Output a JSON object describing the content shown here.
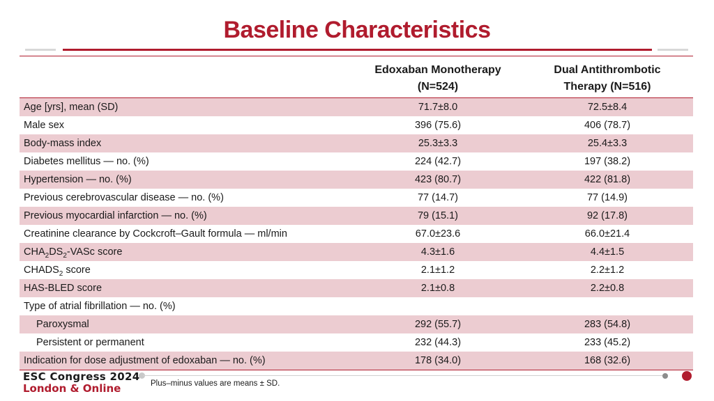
{
  "title": "Baseline Characteristics",
  "columns": {
    "col1_line1": "Edoxaban Monotherapy",
    "col1_line2": "(N=524)",
    "col2_line1": "Dual Antithrombotic",
    "col2_line2": "Therapy (N=516)"
  },
  "rows": [
    {
      "label": "Age [yrs], mean (SD)",
      "v1": "71.7±8.0",
      "v2": "72.5±8.4"
    },
    {
      "label": "Male sex",
      "v1": "396 (75.6)",
      "v2": "406 (78.7)"
    },
    {
      "label": "Body-mass index",
      "v1": "25.3±3.3",
      "v2": "25.4±3.3"
    },
    {
      "label": "Diabetes mellitus — no. (%)",
      "v1": "224 (42.7)",
      "v2": "197 (38.2)"
    },
    {
      "label": "Hypertension — no. (%)",
      "v1": "423 (80.7)",
      "v2": "422 (81.8)"
    },
    {
      "label": "Previous cerebrovascular disease — no. (%)",
      "v1": "77 (14.7)",
      "v2": "77 (14.9)"
    },
    {
      "label": "Previous myocardial infarction — no. (%)",
      "v1": "79 (15.1)",
      "v2": "92 (17.8)"
    },
    {
      "label": "Creatinine clearance by Cockcroft–Gault formula — ml/min",
      "v1": "67.0±23.6",
      "v2": "66.0±21.4"
    },
    {
      "label_parts": [
        "CHA",
        "2",
        "DS",
        "2",
        "-VASc score"
      ],
      "v1": "4.3±1.6",
      "v2": "4.4±1.5"
    },
    {
      "label_parts": [
        "CHADS",
        "2",
        " score"
      ],
      "v1": "2.1±1.2",
      "v2": "2.2±1.2"
    },
    {
      "label": "HAS-BLED score",
      "v1": "2.1±0.8",
      "v2": "2.2±0.8"
    },
    {
      "label": "Type of atrial fibrillation — no. (%)",
      "v1": "",
      "v2": ""
    },
    {
      "label": "Paroxysmal",
      "v1": "292 (55.7)",
      "v2": "283 (54.8)"
    },
    {
      "label": "Persistent or permanent",
      "v1": "232 (44.3)",
      "v2": "233 (45.2)"
    },
    {
      "label": "Indication for dose adjustment of edoxaban — no. (%)",
      "v1": "178 (34.0)",
      "v2": "168 (32.6)"
    }
  ],
  "footer": {
    "logo_line1": "ESC Congress 2024",
    "logo_line2": "London & Online",
    "note": "Plus–minus values are means ± SD."
  },
  "colors": {
    "accent": "#b01c2e",
    "row_shade": "#ecccd1"
  }
}
